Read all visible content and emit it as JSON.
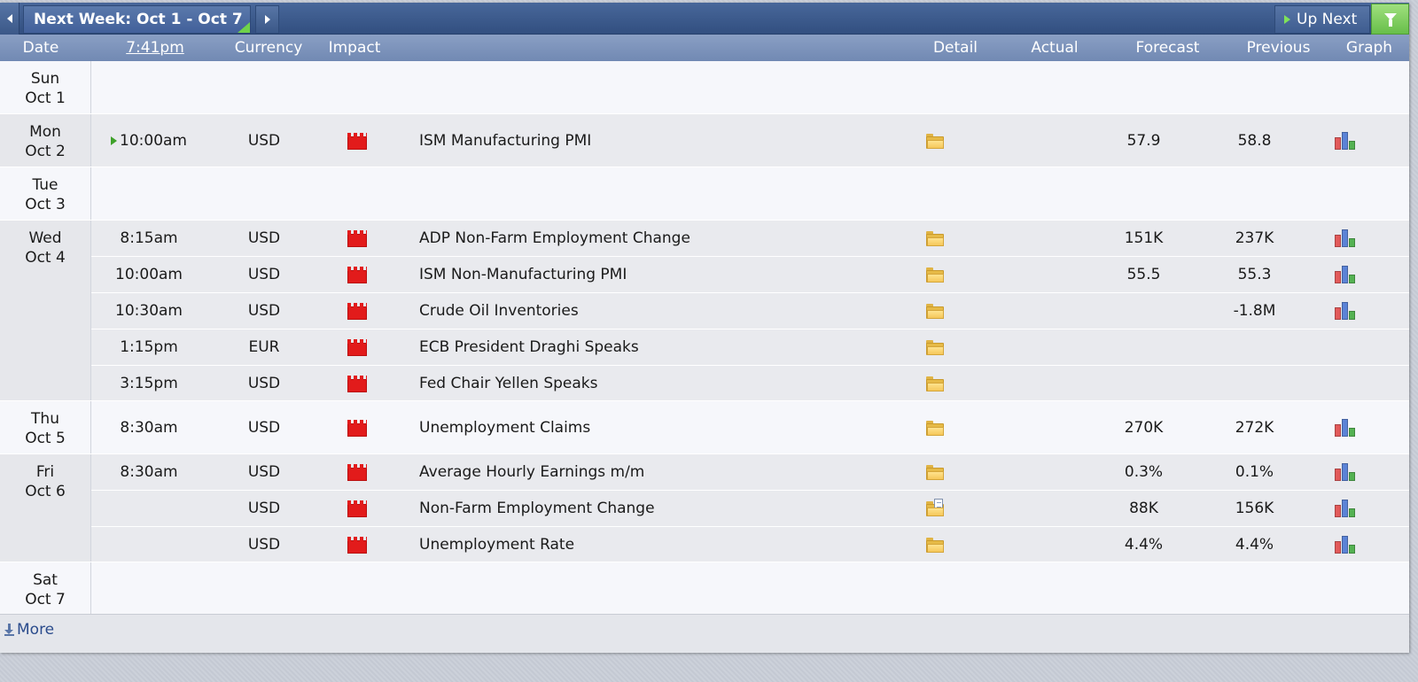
{
  "toolbar": {
    "week_label": "Next Week: Oct 1 - Oct 7",
    "up_next_label": "Up Next"
  },
  "columns": {
    "date": "Date",
    "time": "7:41pm",
    "currency": "Currency",
    "impact": "Impact",
    "detail": "Detail",
    "actual": "Actual",
    "forecast": "Forecast",
    "previous": "Previous",
    "graph": "Graph"
  },
  "days": [
    {
      "dow": "Sun",
      "date": "Oct 1",
      "events": []
    },
    {
      "dow": "Mon",
      "date": "Oct 2",
      "events": [
        {
          "time": "10:00am",
          "current": true,
          "currency": "USD",
          "impact": "high",
          "name": "ISM Manufacturing PMI",
          "detail_icon": "folder-icon",
          "actual": "",
          "forecast": "57.9",
          "previous": "58.8",
          "graph": true
        }
      ]
    },
    {
      "dow": "Tue",
      "date": "Oct 3",
      "events": []
    },
    {
      "dow": "Wed",
      "date": "Oct 4",
      "events": [
        {
          "time": "8:15am",
          "currency": "USD",
          "impact": "high",
          "name": "ADP Non-Farm Employment Change",
          "detail_icon": "folder-icon",
          "actual": "",
          "forecast": "151K",
          "previous": "237K",
          "graph": true
        },
        {
          "time": "10:00am",
          "currency": "USD",
          "impact": "high",
          "name": "ISM Non-Manufacturing PMI",
          "detail_icon": "folder-icon",
          "actual": "",
          "forecast": "55.5",
          "previous": "55.3",
          "graph": true
        },
        {
          "time": "10:30am",
          "currency": "USD",
          "impact": "high",
          "name": "Crude Oil Inventories",
          "detail_icon": "folder-icon",
          "actual": "",
          "forecast": "",
          "previous": "-1.8M",
          "graph": true
        },
        {
          "time": "1:15pm",
          "currency": "EUR",
          "impact": "high",
          "name": "ECB President Draghi Speaks",
          "detail_icon": "folder-icon",
          "actual": "",
          "forecast": "",
          "previous": "",
          "graph": false
        },
        {
          "time": "3:15pm",
          "currency": "USD",
          "impact": "high",
          "name": "Fed Chair Yellen Speaks",
          "detail_icon": "folder-icon",
          "actual": "",
          "forecast": "",
          "previous": "",
          "graph": false
        }
      ]
    },
    {
      "dow": "Thu",
      "date": "Oct 5",
      "events": [
        {
          "time": "8:30am",
          "currency": "USD",
          "impact": "high",
          "name": "Unemployment Claims",
          "detail_icon": "folder-icon",
          "actual": "",
          "forecast": "270K",
          "previous": "272K",
          "graph": true
        }
      ]
    },
    {
      "dow": "Fri",
      "date": "Oct 6",
      "events": [
        {
          "time": "8:30am",
          "currency": "USD",
          "impact": "high",
          "name": "Average Hourly Earnings m/m",
          "detail_icon": "folder-icon",
          "actual": "",
          "forecast": "0.3%",
          "previous": "0.1%",
          "graph": true
        },
        {
          "time": "",
          "currency": "USD",
          "impact": "high",
          "name": "Non-Farm Employment Change",
          "detail_icon": "folder-news-icon",
          "actual": "",
          "forecast": "88K",
          "previous": "156K",
          "graph": true
        },
        {
          "time": "",
          "currency": "USD",
          "impact": "high",
          "name": "Unemployment Rate",
          "detail_icon": "folder-icon",
          "actual": "",
          "forecast": "4.4%",
          "previous": "4.4%",
          "graph": true
        }
      ]
    },
    {
      "dow": "Sat",
      "date": "Oct 7",
      "events": []
    }
  ],
  "footer": {
    "more_label": "More"
  },
  "colors": {
    "header_blue": "#324f80",
    "column_bar": "#7f96bd",
    "impact_high": "#e21b1b",
    "filter_green": "#68bf4a"
  }
}
